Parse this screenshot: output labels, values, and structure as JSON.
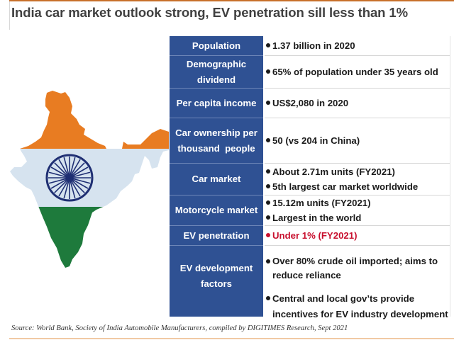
{
  "title": "India car market outlook strong, EV penetration sill less than 1%",
  "colors": {
    "accent_rule": "#c8702a",
    "category_bg": "#2f5193",
    "highlight_red": "#c8102e",
    "flag_saffron": "#e87c22",
    "flag_white": "#d6e3ef",
    "flag_green": "#1e7a3c",
    "chakra_navy": "#1f2f73"
  },
  "map": {
    "icon": "india-flag-map-icon"
  },
  "rows": [
    {
      "category": "Population",
      "values": [
        {
          "text": "1.37 billion in 2020"
        }
      ]
    },
    {
      "category": "Demographic dividend",
      "values": [
        {
          "text": "65% of population under 35 years old"
        }
      ]
    },
    {
      "category": "Per capita income",
      "values": [
        {
          "text": "US$2,080 in 2020"
        }
      ]
    },
    {
      "category": "Car ownership per thousand  people",
      "values": [
        {
          "text": "50 (vs 204 in China)"
        }
      ]
    },
    {
      "category": "Car market",
      "values": [
        {
          "text": "About 2.71m units (FY2021)"
        },
        {
          "text": "5th largest car market worldwide"
        }
      ]
    },
    {
      "category": "Motorcycle market",
      "values": [
        {
          "text": "15.12m units (FY2021)"
        },
        {
          "text": "Largest in the world"
        }
      ]
    },
    {
      "category": "EV penetration",
      "values": [
        {
          "text": "Under 1% (FY2021)",
          "highlight": true
        }
      ]
    },
    {
      "category": "EV development factors",
      "values": [
        {
          "text": "Over 80% crude oil imported; aims to reduce reliance"
        },
        {
          "text": "Central and local gov’ts provide incentives for EV industry development"
        }
      ]
    }
  ],
  "source": "Source: World Bank, Society of India Automobile Manufacturers, compiled by DIGITIMES Research, Sept 2021"
}
